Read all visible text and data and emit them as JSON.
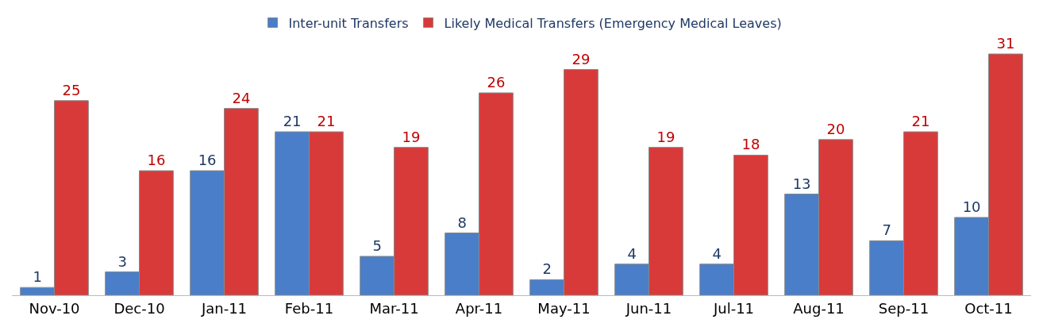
{
  "chart_data": {
    "type": "bar",
    "categories": [
      "Nov-10",
      "Dec-10",
      "Jan-11",
      "Feb-11",
      "Mar-11",
      "Apr-11",
      "May-11",
      "Jun-11",
      "Jul-11",
      "Aug-11",
      "Sep-11",
      "Oct-11"
    ],
    "series": [
      {
        "name": "Inter-unit Transfers",
        "color": "#4a7ec8",
        "values": [
          1,
          3,
          16,
          21,
          5,
          8,
          2,
          4,
          4,
          13,
          7,
          10
        ]
      },
      {
        "name": "Likely Medical Transfers (Emergency Medical Leaves)",
        "color": "#d83a3a",
        "values": [
          25,
          16,
          24,
          21,
          19,
          26,
          29,
          19,
          18,
          20,
          21,
          31
        ]
      }
    ],
    "data_labels": true,
    "legend": "top"
  }
}
